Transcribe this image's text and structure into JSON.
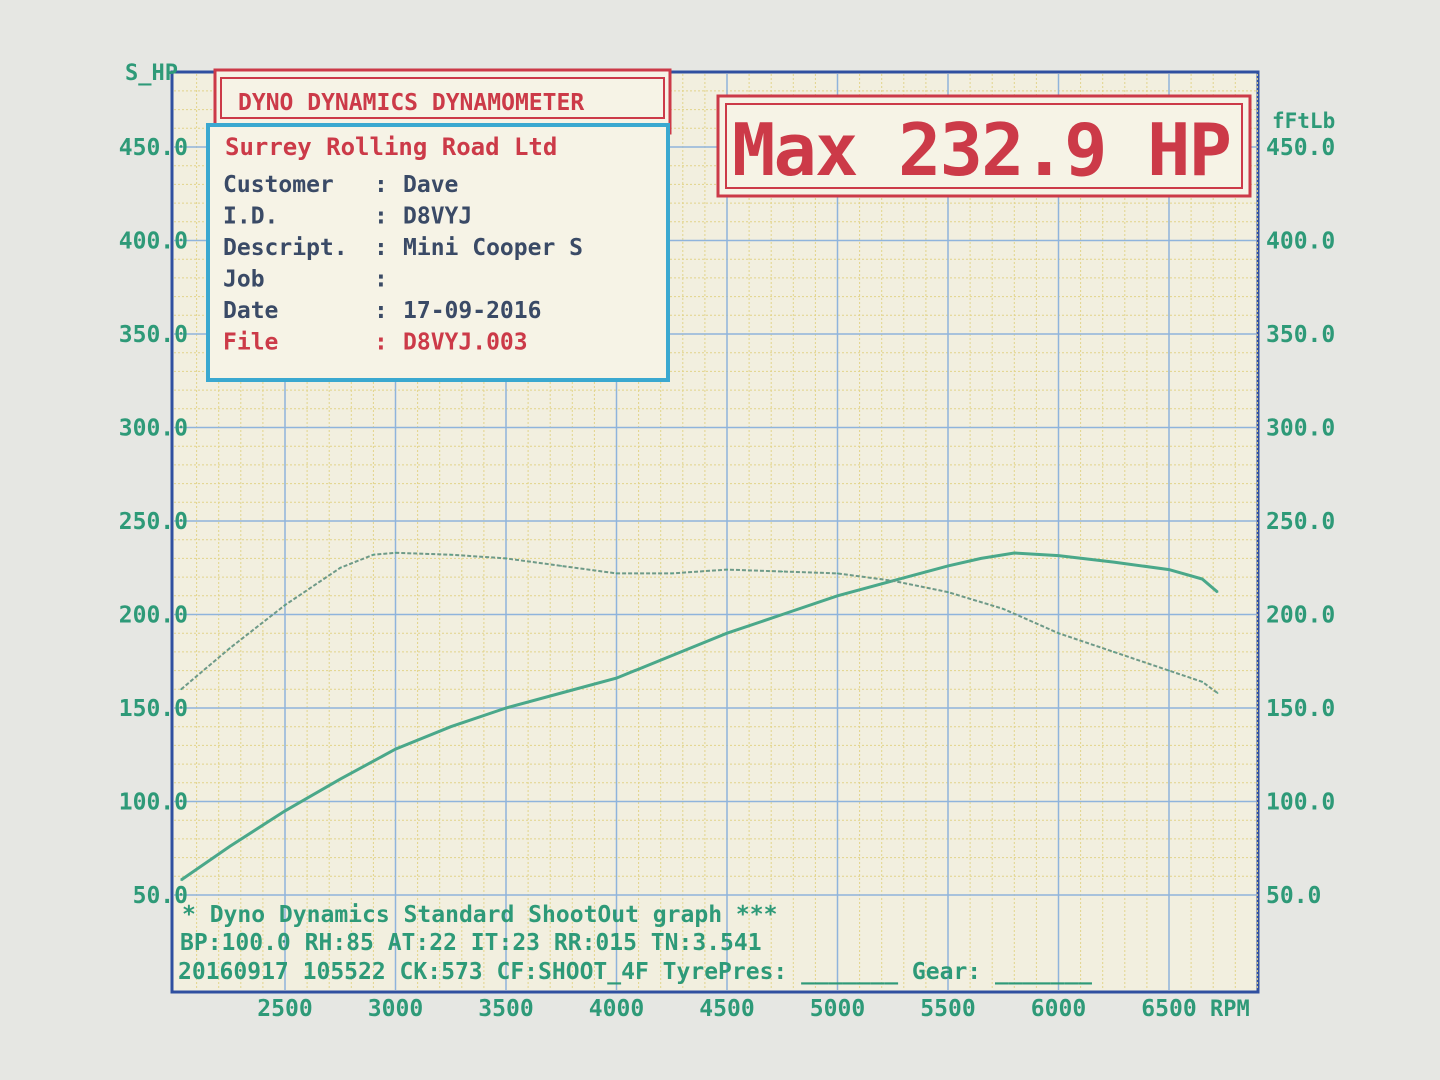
{
  "header": {
    "title": "DYNO DYNAMICS DYNAMOMETER",
    "max_label": "Max 232.9 HP"
  },
  "info": {
    "company": "Surrey Rolling Road Ltd",
    "rows": [
      {
        "label": "Customer",
        "sep": ":",
        "value": "Dave"
      },
      {
        "label": "I.D.",
        "sep": ":",
        "value": "D8VYJ"
      },
      {
        "label": "Descript.",
        "sep": ":",
        "value": "Mini Cooper S"
      },
      {
        "label": "Job",
        "sep": ":",
        "value": ""
      },
      {
        "label": "Date",
        "sep": ":",
        "value": "17-09-2016"
      },
      {
        "label": "File",
        "sep": ":",
        "value": "D8VYJ.003"
      }
    ]
  },
  "footer": {
    "line1": "* Dyno Dynamics Standard ShootOut graph ***",
    "line2": "BP:100.0 RH:85 AT:22 IT:23  RR:015 TN:3.541",
    "line3": "20160917 105522 CK:573 CF:SHOOT_4F TyrePres: _______ Gear: _______"
  },
  "colors": {
    "text_green": "#2e9a78",
    "text_red": "#cc3a48",
    "frame_blue": "#3050a0",
    "info_border": "#3aa8d0",
    "grid_major": "#8fb4dc",
    "grid_minor": "#e2d48a",
    "plot_bg": "#f2efdf"
  },
  "chart_data": {
    "type": "line",
    "xlabel": "RPM",
    "ylabel_left": "S_HP",
    "ylabel_right": "fFtLb",
    "xlim": [
      2000,
      6950
    ],
    "ylim": [
      50,
      450
    ],
    "x_ticks": [
      "2500",
      "3000",
      "3500",
      "4000",
      "4500",
      "5000",
      "5500",
      "6000",
      "6500"
    ],
    "y_ticks_left": [
      "50.0",
      "100.0",
      "150.0",
      "200.0",
      "250.0",
      "300.0",
      "350.0",
      "400.0",
      "450.0"
    ],
    "y_ticks_right": [
      "50.0",
      "100.0",
      "150.0",
      "200.0",
      "250.0",
      "300.0",
      "350.0",
      "400.0",
      "450.0"
    ],
    "grid": true,
    "series": [
      {
        "axis": "left",
        "style": "solid",
        "x": [
          2030,
          2250,
          2500,
          2750,
          3000,
          3250,
          3500,
          3750,
          4000,
          4250,
          4500,
          4750,
          5000,
          5250,
          5500,
          5650,
          5800,
          6000,
          6250,
          6500,
          6650,
          6720
        ],
        "y": [
          58,
          76,
          95,
          112,
          128,
          140,
          150,
          158,
          166,
          178,
          190,
          200,
          210,
          218,
          226,
          230,
          232.9,
          231.5,
          228,
          224,
          219,
          212
        ]
      },
      {
        "axis": "right",
        "style": "dashed",
        "x": [
          2030,
          2250,
          2500,
          2750,
          2900,
          3000,
          3250,
          3500,
          3750,
          4000,
          4250,
          4500,
          4750,
          5000,
          5250,
          5500,
          5750,
          6000,
          6250,
          6500,
          6650,
          6720
        ],
        "y": [
          160,
          182,
          205,
          225,
          232,
          233,
          232,
          230,
          226,
          222,
          222,
          224,
          223,
          222,
          218,
          212,
          203,
          190,
          180,
          170,
          164,
          158
        ]
      }
    ]
  }
}
